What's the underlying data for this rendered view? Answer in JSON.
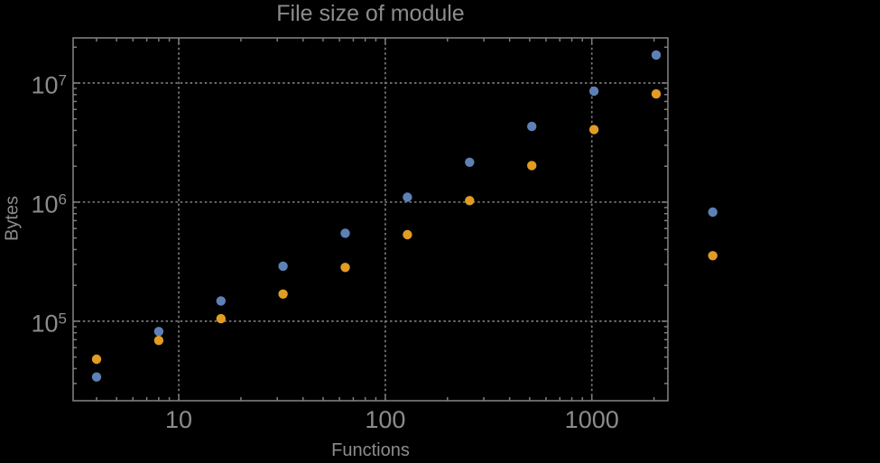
{
  "chart_data": {
    "type": "scatter",
    "title": "File size of module",
    "xlabel": "Functions",
    "ylabel": "Bytes",
    "x_scale": "log",
    "y_scale": "log",
    "grid": "dotted",
    "legend": "none",
    "xlim": [
      3.08,
      2335
    ],
    "ylim": [
      21500,
      23920000
    ],
    "x_major_ticks": [
      {
        "value": 10,
        "label": "10"
      },
      {
        "value": 100,
        "label": "100"
      },
      {
        "value": 1000,
        "label": "1000"
      }
    ],
    "y_major_ticks": [
      {
        "value": 100000,
        "base": "10",
        "exponent": "5"
      },
      {
        "value": 1000000,
        "base": "10",
        "exponent": "6"
      },
      {
        "value": 10000000,
        "base": "10",
        "exponent": "7"
      }
    ],
    "series": [
      {
        "color": "#5e81b5",
        "points": [
          [
            4,
            34000
          ],
          [
            8,
            82000
          ],
          [
            16,
            148000
          ],
          [
            32,
            290000
          ],
          [
            64,
            548000
          ],
          [
            128,
            1100000
          ],
          [
            256,
            2160000
          ],
          [
            512,
            4320000
          ],
          [
            1024,
            8550000
          ],
          [
            2048,
            17200000
          ],
          [
            3850,
            825000
          ]
        ]
      },
      {
        "color": "#e19c24",
        "points": [
          [
            4,
            48000
          ],
          [
            8,
            69000
          ],
          [
            16,
            105000
          ],
          [
            32,
            169000
          ],
          [
            64,
            283000
          ],
          [
            128,
            533000
          ],
          [
            256,
            1030000
          ],
          [
            512,
            2030000
          ],
          [
            1024,
            4060000
          ],
          [
            2048,
            8090000
          ],
          [
            3850,
            355000
          ]
        ]
      }
    ],
    "colors": {
      "background": "#000000",
      "frame": "#7d7d7d",
      "grid": "#787878",
      "text": "#8c8c8c"
    }
  }
}
